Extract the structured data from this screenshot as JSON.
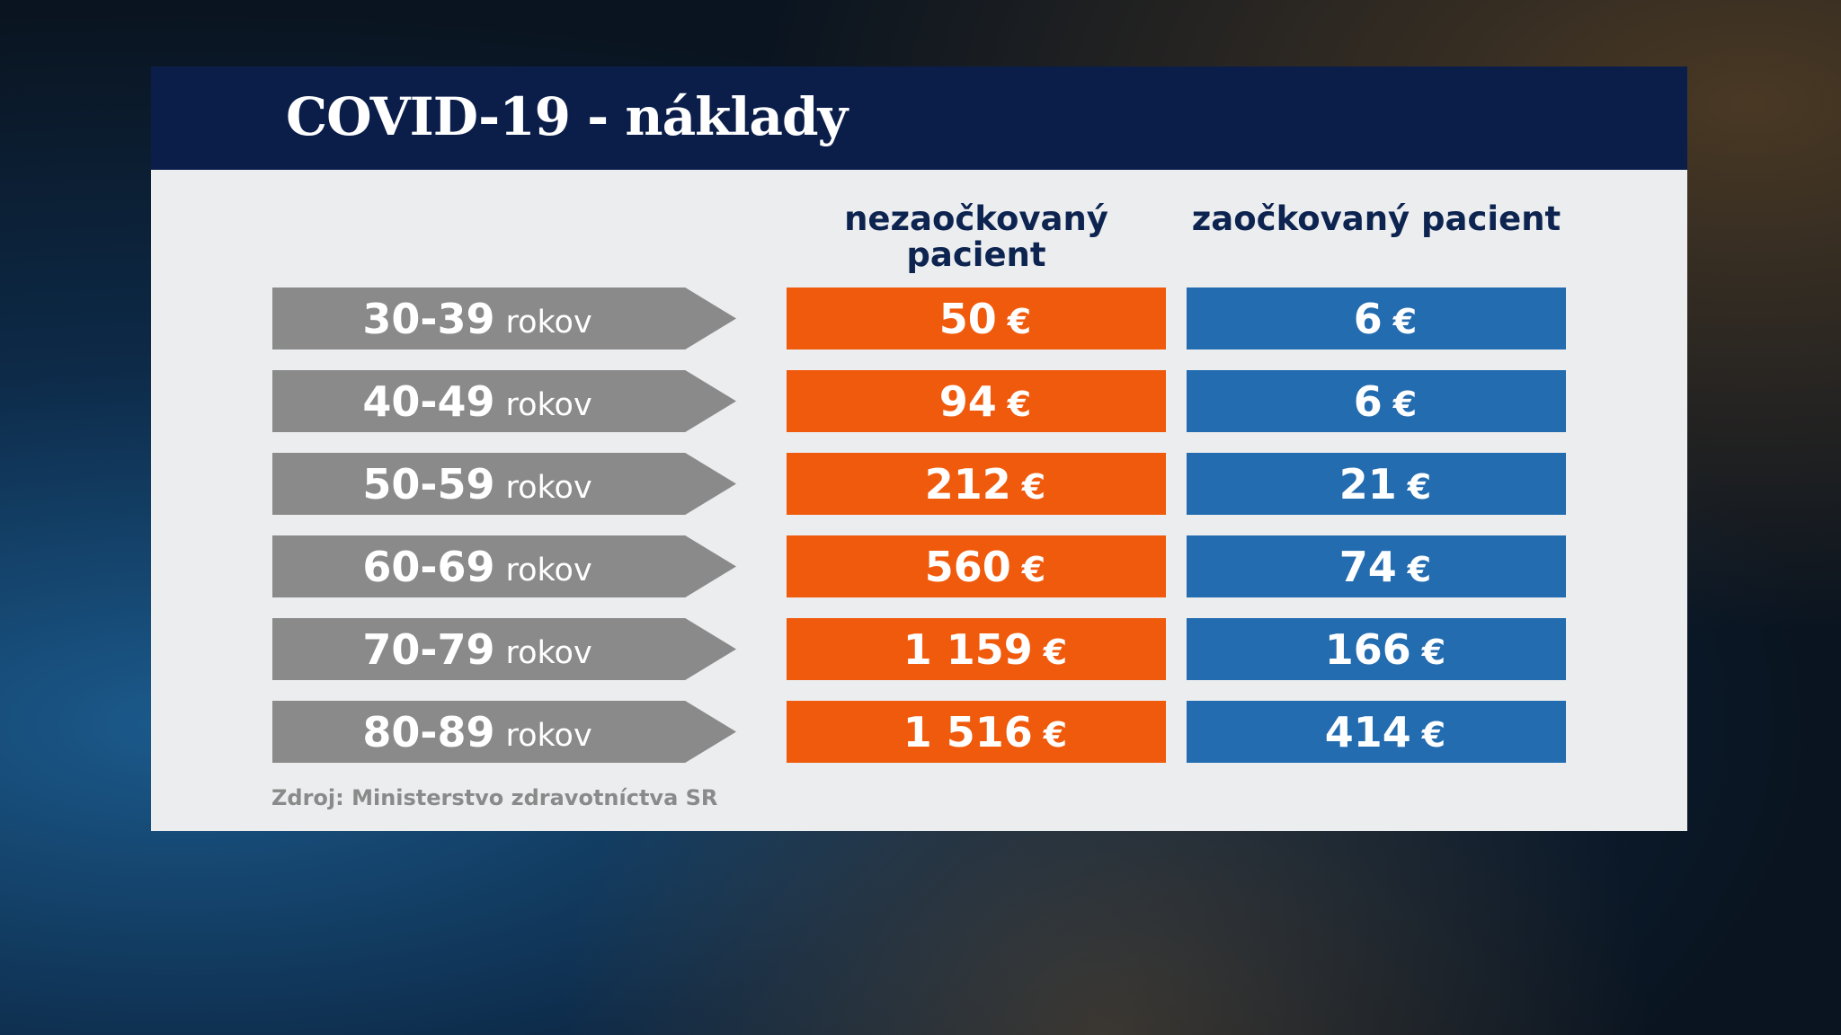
{
  "header": {
    "title": "COVID-19 - náklady"
  },
  "table": {
    "columns": [
      "nezaočkovaný pacient",
      "zaočkovaný pacient"
    ],
    "currency": "€",
    "rows": [
      {
        "age": "30-39",
        "unit": "rokov",
        "cells": [
          "50",
          "6"
        ]
      },
      {
        "age": "40-49",
        "unit": "rokov",
        "cells": [
          "94",
          "6"
        ]
      },
      {
        "age": "50-59",
        "unit": "rokov",
        "cells": [
          "212",
          "21"
        ]
      },
      {
        "age": "60-69",
        "unit": "rokov",
        "cells": [
          "560",
          "74"
        ]
      },
      {
        "age": "70-79",
        "unit": "rokov",
        "cells": [
          "1 159",
          "166"
        ]
      },
      {
        "age": "80-89",
        "unit": "rokov",
        "cells": [
          "1 516",
          "414"
        ]
      }
    ]
  },
  "source": "Zdroj: Ministerstvo zdravotníctva SR"
}
